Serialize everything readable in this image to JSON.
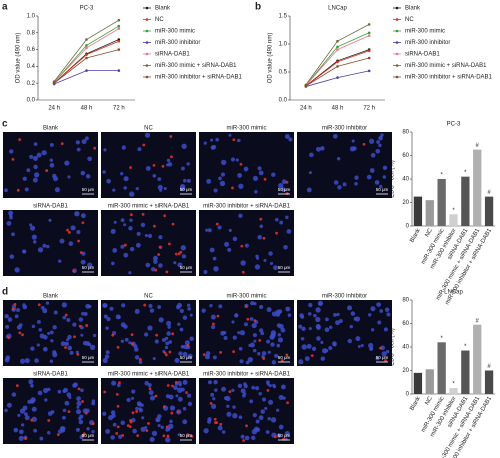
{
  "chart_data": [
    {
      "type": "line",
      "panel_label": "a",
      "title": "PC-3",
      "y_label": "OD value (490 nm)",
      "categories": [
        "24 h",
        "48 h",
        "72 h"
      ],
      "ylim": [
        0,
        1.0
      ],
      "yticks": [
        {
          "value": 0,
          "label": "0.0"
        },
        0.2,
        0.4,
        0.6,
        0.8,
        {
          "value": 1.0,
          "label": "1.0"
        }
      ],
      "series": [
        {
          "name": "Blank",
          "color": "#1a1a1a",
          "values": [
            0.2,
            0.55,
            0.72
          ]
        },
        {
          "name": "NC",
          "color": "#d7301f",
          "values": [
            0.2,
            0.54,
            0.7
          ]
        },
        {
          "name": "miR-300 mimic",
          "color": "#3a9a3a",
          "values": [
            0.21,
            0.65,
            0.88
          ]
        },
        {
          "name": "miR-300 inhibitor",
          "color": "#4b3fa8",
          "values": [
            0.19,
            0.35,
            0.35
          ]
        },
        {
          "name": "siRNA-DAB1",
          "color": "#e07a8a",
          "values": [
            0.21,
            0.62,
            0.85
          ]
        },
        {
          "name": "miR-300 mimic + siRNA-DAB1",
          "color": "#6b6b3a",
          "values": [
            0.22,
            0.72,
            0.95
          ]
        },
        {
          "name": "miR-300 inhibitor + siRNA-DAB1",
          "color": "#8a4a2a",
          "values": [
            0.2,
            0.5,
            0.6
          ]
        }
      ]
    },
    {
      "type": "line",
      "panel_label": "b",
      "title": "LNCap",
      "y_label": "OD value (490 nm)",
      "categories": [
        "24 h",
        "48 h",
        "72 h"
      ],
      "ylim": [
        0,
        1.5
      ],
      "yticks": [
        {
          "value": 0,
          "label": "0.0"
        },
        0.5,
        {
          "value": 1.0,
          "label": "1.0"
        },
        1.5
      ],
      "series": [
        {
          "name": "Blank",
          "color": "#1a1a1a",
          "values": [
            0.25,
            0.7,
            0.9
          ]
        },
        {
          "name": "NC",
          "color": "#d7301f",
          "values": [
            0.25,
            0.68,
            0.88
          ]
        },
        {
          "name": "miR-300 mimic",
          "color": "#3a9a3a",
          "values": [
            0.26,
            0.95,
            1.2
          ]
        },
        {
          "name": "miR-300 inhibitor",
          "color": "#4b3fa8",
          "values": [
            0.24,
            0.4,
            0.52
          ]
        },
        {
          "name": "siRNA-DAB1",
          "color": "#e07a8a",
          "values": [
            0.26,
            0.9,
            1.15
          ]
        },
        {
          "name": "miR-300 mimic + siRNA-DAB1",
          "color": "#6b6b3a",
          "values": [
            0.27,
            1.05,
            1.35
          ]
        },
        {
          "name": "miR-300 inhibitor + siRNA-DAB1",
          "color": "#8a4a2a",
          "values": [
            0.25,
            0.6,
            0.75
          ]
        }
      ]
    },
    {
      "type": "bar",
      "title": "PC-3",
      "y_label": "EDU⁺ cell (%)",
      "categories": [
        "Blank",
        "NC",
        "miR-300 mimic",
        "miR-300 inhibitor",
        "siRNA-DAB1",
        "miR-300 mimic + siRNA-DAB1",
        "miR-300 inhibitor + siRNA-DAB1"
      ],
      "values": [
        25,
        22,
        40,
        10,
        42,
        65,
        25
      ],
      "colors": [
        "#3a3a3a",
        "#9a9a9a",
        "#6a6a6a",
        "#d0d0d0",
        "#555555",
        "#b0b0b0",
        "#4a4a4a"
      ],
      "annotations": [
        null,
        null,
        "*",
        "*",
        "*",
        "#",
        "#"
      ],
      "ylim": [
        0,
        80
      ],
      "yticks": [
        0,
        20,
        40,
        60,
        80
      ]
    },
    {
      "type": "bar",
      "title": "LNCap",
      "y_label": "EDU⁺ cell (%)",
      "categories": [
        "Blank",
        "NC",
        "miR-300 mimic",
        "miR-300 inhibitor",
        "siRNA-DAB1",
        "miR-300 mimic + siRNA-DAB1",
        "miR-300 inhibitor + siRNA-DAB1"
      ],
      "values": [
        18,
        21,
        44,
        5,
        37,
        59,
        20
      ],
      "colors": [
        "#3a3a3a",
        "#9a9a9a",
        "#6a6a6a",
        "#d0d0d0",
        "#555555",
        "#b0b0b0",
        "#4a4a4a"
      ],
      "annotations": [
        null,
        null,
        "*",
        "*",
        "*",
        "#",
        "#"
      ],
      "ylim": [
        0,
        80
      ],
      "yticks": [
        0,
        20,
        40,
        60,
        80
      ]
    }
  ],
  "panels": [
    {
      "letter": "c",
      "images": [
        {
          "label": "Blank",
          "scale": "50 μm"
        },
        {
          "label": "NC",
          "scale": "50 μm"
        },
        {
          "label": "miR-300 mimic",
          "scale": "50 μm"
        },
        {
          "label": "miR-300 inhibitor",
          "scale": "50 μm"
        },
        {
          "label": "siRNA-DAB1",
          "scale": "50 μm"
        },
        {
          "label": "miR-300 mimic + siRNA-DAB1",
          "scale": "50 μm"
        },
        {
          "label": "miR-300 inhibitor + siRNA-DAB1",
          "scale": "50 μm"
        }
      ]
    },
    {
      "letter": "d",
      "images": [
        {
          "label": "Blank",
          "scale": "50 μm"
        },
        {
          "label": "NC",
          "scale": "50 μm"
        },
        {
          "label": "miR-300 mimic",
          "scale": "50 μm"
        },
        {
          "label": "miR-300 inhibitor",
          "scale": "50 μm"
        },
        {
          "label": "siRNA-DAB1",
          "scale": "50 μm"
        },
        {
          "label": "miR-300 mimic + siRNA-DAB1",
          "scale": "50 μm"
        },
        {
          "label": "miR-300 inhibitor + siRNA-DAB1",
          "scale": "50 μm"
        }
      ]
    }
  ]
}
